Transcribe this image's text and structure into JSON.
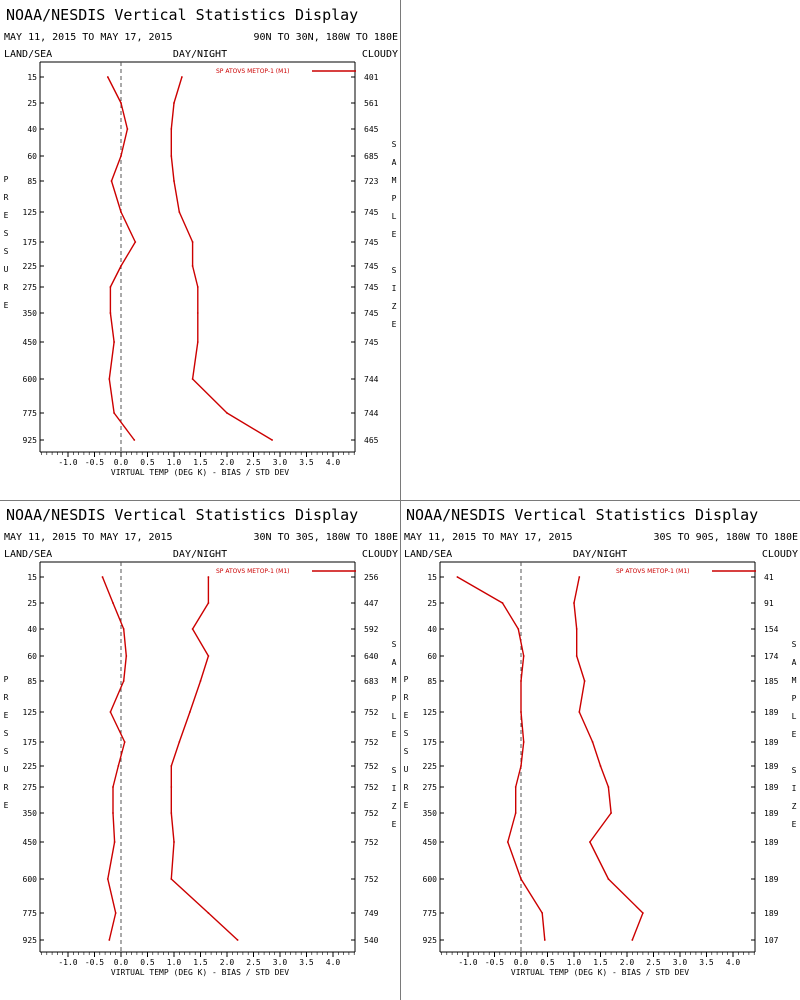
{
  "colors": {
    "series": "#cc0000",
    "axis": "#000000",
    "zero_line": "#555555",
    "divider": "#7a7a7a"
  },
  "chart_data": [
    {
      "type": "line",
      "title": "NOAA/NESDIS Vertical Statistics Display",
      "date_range": "MAY 11, 2015 TO MAY 17, 2015",
      "region": "90N TO 30N, 180W TO 180E",
      "surface": "LAND/SEA",
      "time_of_day": "DAY/NIGHT",
      "sky": "CLOUDY",
      "xlabel": "VIRTUAL TEMP (DEG K) - BIAS / STD DEV",
      "ylabel": "PRESSURE",
      "y2label": "SAMPLE SIZE",
      "xlim": [
        -1.5,
        4.5
      ],
      "x_ticks": [
        "-1.0",
        "-0.5",
        "0.0",
        "0.5",
        "1.0",
        "1.5",
        "2.0",
        "2.5",
        "3.0",
        "3.5",
        "4.0"
      ],
      "y_categories": [
        "15",
        "25",
        "40",
        "60",
        "85",
        "125",
        "175",
        "225",
        "275",
        "350",
        "450",
        "600",
        "775",
        "925"
      ],
      "sample_size": [
        "401",
        "561",
        "645",
        "685",
        "723",
        "745",
        "745",
        "745",
        "745",
        "745",
        "745",
        "744",
        "744",
        "465"
      ],
      "legend": "SP ATOVS METOP-1 (M1)",
      "series": [
        {
          "name": "bias",
          "values": [
            -0.25,
            0.0,
            0.12,
            0.0,
            -0.18,
            0.0,
            0.27,
            0.0,
            -0.2,
            -0.2,
            -0.13,
            -0.22,
            -0.13,
            0.25
          ]
        },
        {
          "name": "std dev",
          "values": [
            1.15,
            1.0,
            0.95,
            0.95,
            1.0,
            1.1,
            1.35,
            1.35,
            1.45,
            1.45,
            1.45,
            1.35,
            2.0,
            2.85
          ]
        }
      ]
    },
    {
      "type": "line",
      "title": "NOAA/NESDIS Vertical Statistics Display",
      "date_range": "MAY 11, 2015 TO MAY 17, 2015",
      "region": "30N TO 30S, 180W TO 180E",
      "surface": "LAND/SEA",
      "time_of_day": "DAY/NIGHT",
      "sky": "CLOUDY",
      "xlabel": "VIRTUAL TEMP (DEG K) - BIAS / STD DEV",
      "ylabel": "PRESSURE",
      "y2label": "SAMPLE SIZE",
      "xlim": [
        -1.5,
        4.5
      ],
      "x_ticks": [
        "-1.0",
        "-0.5",
        "0.0",
        "0.5",
        "1.0",
        "1.5",
        "2.0",
        "2.5",
        "3.0",
        "3.5",
        "4.0"
      ],
      "y_categories": [
        "15",
        "25",
        "40",
        "60",
        "85",
        "125",
        "175",
        "225",
        "275",
        "350",
        "450",
        "600",
        "775",
        "925"
      ],
      "sample_size": [
        "256",
        "447",
        "592",
        "640",
        "683",
        "752",
        "752",
        "752",
        "752",
        "752",
        "752",
        "752",
        "749",
        "540"
      ],
      "legend": "SP ATOVS METOP-1 (M1)",
      "series": [
        {
          "name": "bias",
          "values": [
            -0.35,
            -0.15,
            0.05,
            0.1,
            0.05,
            -0.2,
            0.07,
            -0.05,
            -0.15,
            -0.15,
            -0.12,
            -0.25,
            -0.1,
            -0.22
          ]
        },
        {
          "name": "std dev",
          "values": [
            1.65,
            1.65,
            1.35,
            1.65,
            1.5,
            1.3,
            1.1,
            0.95,
            0.95,
            0.95,
            1.0,
            0.95,
            1.65,
            2.2
          ]
        }
      ]
    },
    {
      "type": "line",
      "title": "NOAA/NESDIS Vertical Statistics Display",
      "date_range": "MAY 11, 2015 TO MAY 17, 2015",
      "region": "30S TO 90S, 180W TO 180E",
      "surface": "LAND/SEA",
      "time_of_day": "DAY/NIGHT",
      "sky": "CLOUDY",
      "xlabel": "VIRTUAL TEMP (DEG K) - BIAS / STD DEV",
      "ylabel": "PRESSURE",
      "y2label": "SAMPLE SIZE",
      "xlim": [
        -1.5,
        4.5
      ],
      "x_ticks": [
        "-1.0",
        "-0.5",
        "0.0",
        "0.5",
        "1.0",
        "1.5",
        "2.0",
        "2.5",
        "3.0",
        "3.5",
        "4.0"
      ],
      "y_categories": [
        "15",
        "25",
        "40",
        "60",
        "85",
        "125",
        "175",
        "225",
        "275",
        "350",
        "450",
        "600",
        "775",
        "925"
      ],
      "sample_size": [
        "41",
        "91",
        "154",
        "174",
        "185",
        "189",
        "189",
        "189",
        "189",
        "189",
        "189",
        "189",
        "189",
        "107"
      ],
      "legend": "SP ATOVS METOP-1 (M1)",
      "series": [
        {
          "name": "bias",
          "values": [
            -1.2,
            -0.35,
            -0.05,
            0.05,
            0.0,
            0.0,
            0.05,
            0.0,
            -0.1,
            -0.1,
            -0.25,
            0.0,
            0.4,
            0.45
          ]
        },
        {
          "name": "std dev",
          "values": [
            1.1,
            1.0,
            1.05,
            1.05,
            1.2,
            1.1,
            1.35,
            1.5,
            1.65,
            1.7,
            1.3,
            1.65,
            2.3,
            2.1
          ]
        }
      ]
    }
  ]
}
